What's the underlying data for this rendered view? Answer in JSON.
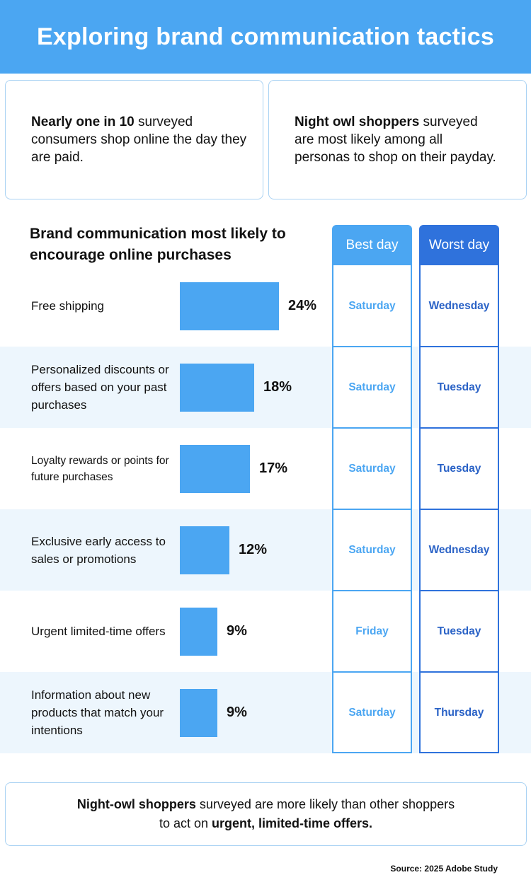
{
  "title": "Exploring brand communication tactics",
  "callouts": {
    "left": {
      "bold": "Nearly one in 10",
      "text": " surveyed consumers shop online the day they are paid."
    },
    "right": {
      "bold": "Night owl shoppers",
      "text": " surveyed are most likely among all personas to shop on their payday."
    }
  },
  "columns": {
    "best": "Best day",
    "worst": "Worst day"
  },
  "chart_data": {
    "type": "bar",
    "orientation": "horizontal",
    "title": "Brand communication most likely to encourage online purchases",
    "categories": [
      "Free shipping",
      "Personalized discounts or offers based on your past purchases",
      "Loyalty rewards or points for future purchases",
      "Exclusive early access to sales or promotions",
      "Urgent limited-time offers",
      "Information about new products that match your intentions"
    ],
    "values": [
      24,
      18,
      17,
      12,
      9,
      9
    ],
    "value_labels": [
      "24%",
      "18%",
      "17%",
      "12%",
      "9%",
      "9%"
    ],
    "unit": "%",
    "xlim": [
      0,
      24
    ],
    "best_day": [
      "Saturday",
      "Saturday",
      "Saturday",
      "Saturday",
      "Friday",
      "Saturday"
    ],
    "worst_day": [
      "Wednesday",
      "Tuesday",
      "Tuesday",
      "Wednesday",
      "Tuesday",
      "Thursday"
    ]
  },
  "footer": {
    "bold1": "Night-owl shoppers",
    "text1": " surveyed are more likely than other shoppers to act on ",
    "bold2": "urgent, limited-time offers."
  },
  "source": "Source: 2025 Adobe Study",
  "colors": {
    "accent": "#4ba6f2",
    "accent_dark": "#2f72dc",
    "band": "#edf6fd"
  }
}
